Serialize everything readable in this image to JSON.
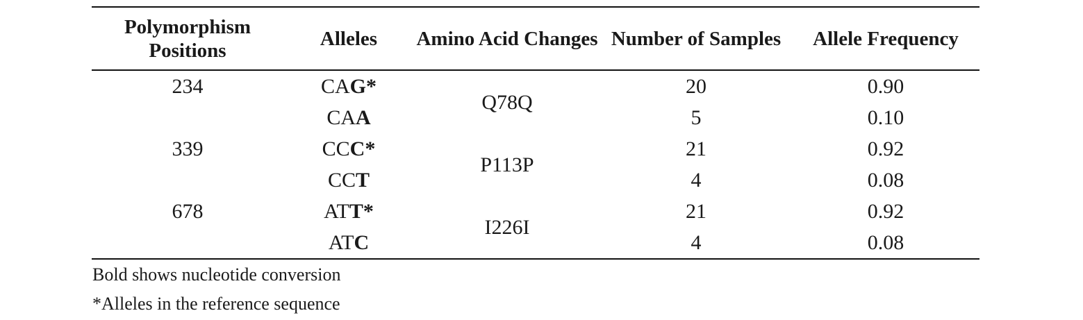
{
  "table": {
    "headers": [
      "Polymorphism Positions",
      "Alleles",
      "Amino Acid Changes",
      "Number of Samples",
      "Allele Frequency"
    ],
    "groups": [
      {
        "position": "234",
        "amino_acid_change": "Q78Q",
        "alleles": [
          {
            "plain": "CA",
            "bold": "G*",
            "samples": "20",
            "frequency": "0.90"
          },
          {
            "plain": "CA",
            "bold": "A",
            "samples": "5",
            "frequency": "0.10"
          }
        ]
      },
      {
        "position": "339",
        "amino_acid_change": "P113P",
        "alleles": [
          {
            "plain": "CC",
            "bold": "C*",
            "samples": "21",
            "frequency": "0.92"
          },
          {
            "plain": "CC",
            "bold": "T",
            "samples": "4",
            "frequency": "0.08"
          }
        ]
      },
      {
        "position": "678",
        "amino_acid_change": "I226I",
        "alleles": [
          {
            "plain": "AT",
            "bold": "T*",
            "samples": "21",
            "frequency": "0.92"
          },
          {
            "plain": "AT",
            "bold": "C",
            "samples": "4",
            "frequency": "0.08"
          }
        ]
      }
    ]
  },
  "notes": [
    "Bold shows nucleotide conversion",
    "*Alleles in the reference sequence"
  ]
}
